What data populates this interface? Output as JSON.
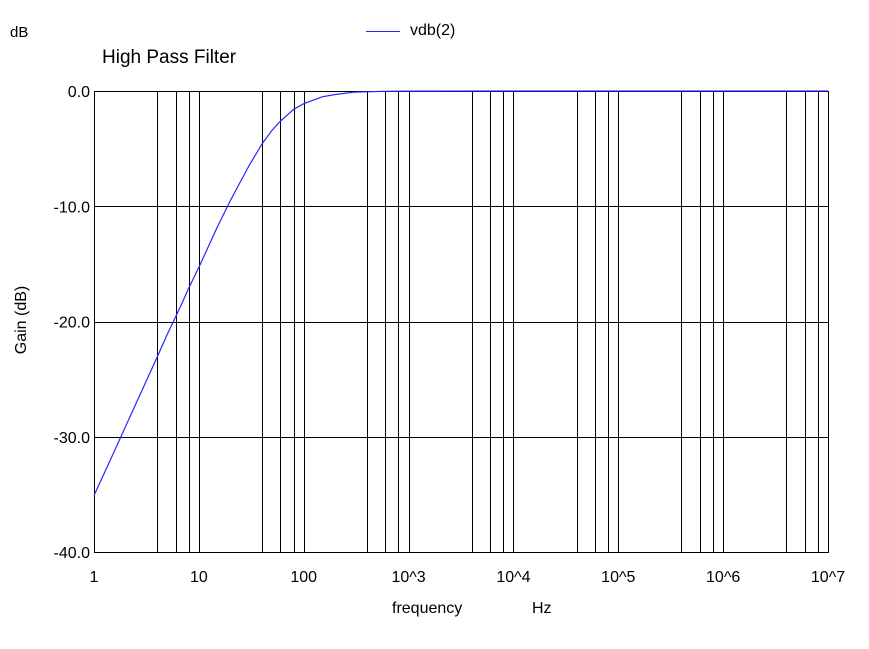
{
  "chart_data": {
    "type": "line",
    "title": "High Pass Filter",
    "unit_label": "dB",
    "ylabel": "Gain (dB)",
    "xlabel": "frequency",
    "xunit": "Hz",
    "xscale": "log",
    "xlim": [
      1,
      10000000
    ],
    "ylim": [
      -40,
      0
    ],
    "grid": true,
    "legend_position": "top-center",
    "xticks": [
      "1",
      "10",
      "100",
      "10^3",
      "10^4",
      "10^5",
      "10^6",
      "10^7"
    ],
    "yticks": [
      "0.0",
      "-10.0",
      "-20.0",
      "-30.0",
      "-40.0"
    ],
    "ytick_values": [
      0,
      -10,
      -20,
      -30,
      -40
    ],
    "vgrid_values": [
      4,
      6,
      8,
      40,
      60,
      80,
      400,
      600,
      800,
      4000,
      6000,
      8000,
      40000,
      60000,
      80000,
      400000,
      600000,
      800000,
      4000000,
      6000000,
      8000000
    ],
    "series": [
      {
        "name": "vdb(2)",
        "color": "#2626ff",
        "x": [
          1,
          1.5,
          2,
          3,
          4,
          5,
          6,
          7,
          8,
          10,
          15,
          20,
          30,
          40,
          50,
          60,
          80,
          100,
          150,
          200,
          300,
          400,
          600,
          1000,
          10000,
          100000,
          1000000,
          10000000
        ],
        "y": [
          -35.1,
          -31.6,
          -29.1,
          -25.6,
          -23.1,
          -21.1,
          -19.6,
          -18.3,
          -17.1,
          -15.3,
          -11.8,
          -9.5,
          -6.5,
          -4.6,
          -3.4,
          -2.6,
          -1.6,
          -1.1,
          -0.5,
          -0.3,
          -0.1,
          -0.07,
          -0.03,
          -0.01,
          0,
          0,
          0,
          0
        ]
      }
    ]
  }
}
